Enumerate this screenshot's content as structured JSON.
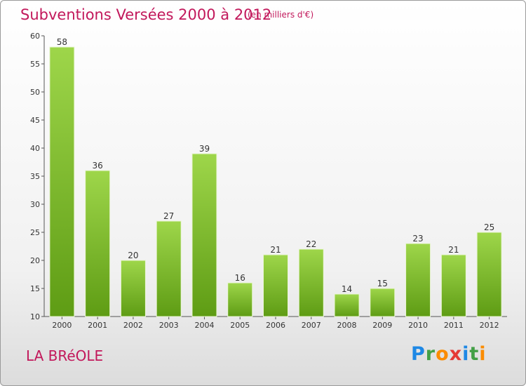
{
  "header": {
    "title": "Subventions Versées 2000 à 2012",
    "subtitle": "(en milliers d'€)"
  },
  "footer": {
    "commune": "LA BRéOLE"
  },
  "logo": {
    "letters": [
      "P",
      "r",
      "o",
      "x",
      "i",
      "t",
      "i"
    ],
    "colors": [
      "#1e88e5",
      "#43a047",
      "#fb8c00",
      "#e53935",
      "#1e88e5",
      "#43a047",
      "#fb8c00"
    ]
  },
  "chart_data": {
    "type": "bar",
    "categories": [
      "2000",
      "2001",
      "2002",
      "2003",
      "2004",
      "2005",
      "2006",
      "2007",
      "2008",
      "2009",
      "2010",
      "2011",
      "2012"
    ],
    "values": [
      58,
      36,
      20,
      27,
      39,
      16,
      21,
      22,
      14,
      15,
      23,
      21,
      25
    ],
    "ylim": [
      10,
      60
    ],
    "yticks": [
      10,
      15,
      20,
      25,
      30,
      35,
      40,
      45,
      50,
      55,
      60
    ],
    "grid": false,
    "bar_color": "#6aab1e"
  }
}
